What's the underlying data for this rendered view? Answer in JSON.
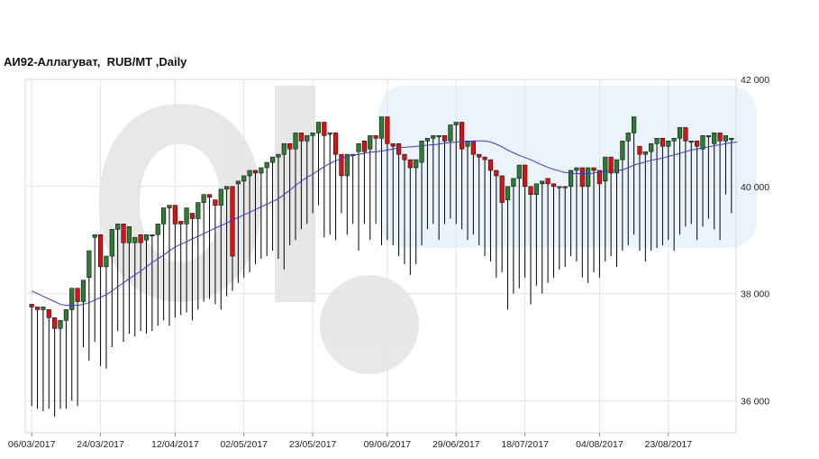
{
  "chart_data": {
    "type": "candlestick",
    "title": "АИ92-Аллагуват,  RUB/MT ,Daily",
    "x_tick_labels": [
      "06/03/2017",
      "24/03/2017",
      "12/04/2017",
      "02/05/2017",
      "23/05/2017",
      "09/06/2017",
      "29/06/2017",
      "18/07/2017",
      "04/08/2017",
      "23/08/2017"
    ],
    "y_tick_labels": [
      "42 000",
      "40 000",
      "38 000",
      "36 000"
    ],
    "y_ticks": [
      42000,
      40000,
      38000,
      36000
    ],
    "ylim": [
      35400,
      42000
    ],
    "grid": true,
    "colors": {
      "up": "#2e7d32",
      "down": "#e01010",
      "wick": "#000000",
      "ma": "#3a3ad8",
      "grid": "#e4e4e4"
    },
    "candles": [
      [
        37800,
        37800,
        37750,
        35900
      ],
      [
        37750,
        37750,
        37700,
        35850
      ],
      [
        37700,
        37700,
        37750,
        35800
      ],
      [
        37700,
        37700,
        37550,
        35850
      ],
      [
        37550,
        37550,
        37350,
        35700
      ],
      [
        37350,
        37350,
        37500,
        35850
      ],
      [
        37500,
        37500,
        37700,
        35850
      ],
      [
        37700,
        37700,
        38100,
        36000
      ],
      [
        38100,
        38100,
        37850,
        35900
      ],
      [
        37850,
        37850,
        38250,
        37000
      ],
      [
        38300,
        38300,
        38800,
        36750
      ],
      [
        39050,
        39050,
        39100,
        37100
      ],
      [
        39100,
        39100,
        38500,
        36650
      ],
      [
        38500,
        38500,
        38700,
        36600
      ],
      [
        38700,
        38700,
        39200,
        37000
      ],
      [
        39200,
        39200,
        39300,
        37300
      ],
      [
        39300,
        39300,
        38950,
        37100
      ],
      [
        38950,
        38950,
        39250,
        37250
      ],
      [
        38950,
        38950,
        39050,
        37200
      ],
      [
        39100,
        39100,
        38950,
        37300
      ],
      [
        39000,
        39000,
        39100,
        37250
      ],
      [
        39100,
        39100,
        39100,
        37300
      ],
      [
        39100,
        39100,
        39300,
        37400
      ],
      [
        39300,
        39300,
        39600,
        37500
      ],
      [
        39600,
        39600,
        39650,
        37400
      ],
      [
        39650,
        39650,
        39300,
        37550
      ],
      [
        39350,
        39350,
        39300,
        37600
      ],
      [
        39300,
        39300,
        39600,
        37650
      ],
      [
        39500,
        39500,
        39400,
        37500
      ],
      [
        39400,
        39400,
        39700,
        37700
      ],
      [
        39700,
        39700,
        39850,
        37850
      ],
      [
        39850,
        39850,
        39800,
        37900
      ],
      [
        39750,
        39750,
        39650,
        37800
      ],
      [
        39650,
        39650,
        39950,
        37700
      ],
      [
        39950,
        39950,
        40000,
        37950
      ],
      [
        40000,
        40000,
        38700,
        38050
      ],
      [
        40050,
        40050,
        40100,
        38200
      ],
      [
        40100,
        40100,
        40200,
        38300
      ],
      [
        40200,
        40200,
        40300,
        38400
      ],
      [
        40300,
        40300,
        40250,
        38550
      ],
      [
        40250,
        40250,
        40350,
        38650
      ],
      [
        40350,
        40350,
        40450,
        38700
      ],
      [
        40450,
        40450,
        40550,
        38800
      ],
      [
        40550,
        40550,
        40600,
        38650
      ],
      [
        40600,
        40600,
        40800,
        38450
      ],
      [
        40800,
        40800,
        40700,
        38900
      ],
      [
        40700,
        40700,
        41000,
        39000
      ],
      [
        41000,
        41000,
        40850,
        39200
      ],
      [
        40850,
        40850,
        40950,
        39300
      ],
      [
        40950,
        40950,
        41000,
        39500
      ],
      [
        41000,
        41000,
        41200,
        39650
      ],
      [
        41200,
        41000,
        40950,
        39050
      ],
      [
        41000,
        41000,
        41000,
        39100
      ],
      [
        41000,
        41000,
        40600,
        39000
      ],
      [
        40600,
        40600,
        40200,
        39500
      ],
      [
        40200,
        40200,
        40600,
        39100
      ],
      [
        40600,
        40600,
        40600,
        39300
      ],
      [
        40650,
        40650,
        40800,
        38800
      ],
      [
        40850,
        40850,
        40650,
        39300
      ],
      [
        40700,
        40700,
        40950,
        39000
      ],
      [
        40950,
        40950,
        40900,
        39300
      ],
      [
        40900,
        40900,
        41300,
        38900
      ],
      [
        41300,
        41300,
        40800,
        39000
      ],
      [
        40800,
        40800,
        40750,
        38900
      ],
      [
        40800,
        40800,
        40600,
        38700
      ],
      [
        40600,
        40600,
        40500,
        38550
      ],
      [
        40500,
        40500,
        40350,
        38350
      ],
      [
        40350,
        40350,
        40500,
        38550
      ],
      [
        40450,
        40450,
        40850,
        38900
      ],
      [
        40850,
        40850,
        40900,
        39200
      ],
      [
        40900,
        40900,
        40950,
        39300
      ],
      [
        40950,
        40950,
        40950,
        39000
      ],
      [
        40950,
        40950,
        40850,
        39300
      ],
      [
        40850,
        40850,
        41150,
        39400
      ],
      [
        41150,
        41150,
        41200,
        39300
      ],
      [
        41200,
        41200,
        40700,
        39200
      ],
      [
        40750,
        40750,
        40850,
        39000
      ],
      [
        40850,
        40850,
        40600,
        39100
      ],
      [
        40600,
        40600,
        40550,
        38900
      ],
      [
        40550,
        40550,
        40500,
        38700
      ],
      [
        40500,
        40500,
        40300,
        38600
      ],
      [
        40300,
        40300,
        40200,
        38300
      ],
      [
        40200,
        40200,
        39700,
        38400
      ],
      [
        39750,
        39750,
        40000,
        37700
      ],
      [
        40000,
        40000,
        40150,
        38000
      ],
      [
        40150,
        40150,
        40400,
        38100
      ],
      [
        40400,
        40400,
        40000,
        38300
      ],
      [
        40000,
        40000,
        39850,
        37800
      ],
      [
        39850,
        39850,
        40050,
        38150
      ],
      [
        40050,
        40050,
        40100,
        38000
      ],
      [
        40150,
        40150,
        40050,
        38200
      ],
      [
        40050,
        40050,
        40000,
        38300
      ],
      [
        40000,
        40000,
        40000,
        38450
      ],
      [
        40000,
        40000,
        39980,
        38500
      ],
      [
        40000,
        40000,
        40300,
        38700
      ],
      [
        40300,
        40300,
        40350,
        38600
      ],
      [
        40350,
        40350,
        40000,
        38300
      ],
      [
        40000,
        40000,
        40350,
        38200
      ],
      [
        40350,
        40350,
        40300,
        38400
      ],
      [
        40300,
        40300,
        40050,
        38300
      ],
      [
        40100,
        40100,
        40550,
        38600
      ],
      [
        40550,
        40550,
        40250,
        38700
      ],
      [
        40250,
        40250,
        40500,
        38500
      ],
      [
        40500,
        40500,
        40850,
        38800
      ],
      [
        40850,
        40850,
        41000,
        38900
      ],
      [
        41000,
        41000,
        41300,
        39100
      ],
      [
        40750,
        40750,
        40600,
        38800
      ],
      [
        40600,
        40600,
        40650,
        38600
      ],
      [
        40650,
        40650,
        40800,
        38800
      ],
      [
        40800,
        40800,
        40900,
        38850
      ],
      [
        40900,
        40900,
        40750,
        38900
      ],
      [
        40750,
        40750,
        40850,
        39000
      ],
      [
        40850,
        40850,
        40900,
        38800
      ],
      [
        40900,
        40900,
        41100,
        39100
      ],
      [
        41100,
        41100,
        40850,
        39250
      ],
      [
        40850,
        40850,
        40850,
        39300
      ],
      [
        40850,
        40850,
        40750,
        39000
      ],
      [
        40700,
        40700,
        40950,
        39250
      ],
      [
        40950,
        40950,
        40950,
        39400
      ],
      [
        40800,
        40800,
        41000,
        39200
      ],
      [
        41000,
        41000,
        40850,
        39000
      ],
      [
        40850,
        40850,
        40950,
        39850
      ],
      [
        40900,
        40900,
        40900,
        39500
      ]
    ],
    "moving_average": [
      38050,
      38000,
      37950,
      37900,
      37850,
      37800,
      37780,
      37780,
      37780,
      37800,
      37830,
      37880,
      37930,
      37980,
      38050,
      38130,
      38200,
      38280,
      38350,
      38420,
      38500,
      38580,
      38650,
      38720,
      38800,
      38870,
      38920,
      38970,
      39020,
      39070,
      39120,
      39170,
      39220,
      39270,
      39320,
      39370,
      39420,
      39470,
      39520,
      39570,
      39620,
      39670,
      39720,
      39770,
      39850,
      39930,
      40020,
      40100,
      40170,
      40230,
      40300,
      40370,
      40430,
      40480,
      40520,
      40560,
      40580,
      40600,
      40620,
      40640,
      40650,
      40660,
      40680,
      40700,
      40720,
      40730,
      40740,
      40750,
      40760,
      40770,
      40780,
      40790,
      40810,
      40820,
      40830,
      40840,
      40840,
      40850,
      40850,
      40850,
      40830,
      40790,
      40740,
      40680,
      40630,
      40580,
      40540,
      40500,
      40450,
      40400,
      40360,
      40320,
      40290,
      40260,
      40250,
      40240,
      40240,
      40240,
      40250,
      40270,
      40280,
      40290,
      40300,
      40310,
      40350,
      40400,
      40430,
      40460,
      40490,
      40510,
      40530,
      40560,
      40590,
      40620,
      40650,
      40680,
      40700,
      40720,
      40740,
      40760,
      40780,
      40800,
      40820,
      40830
    ]
  }
}
